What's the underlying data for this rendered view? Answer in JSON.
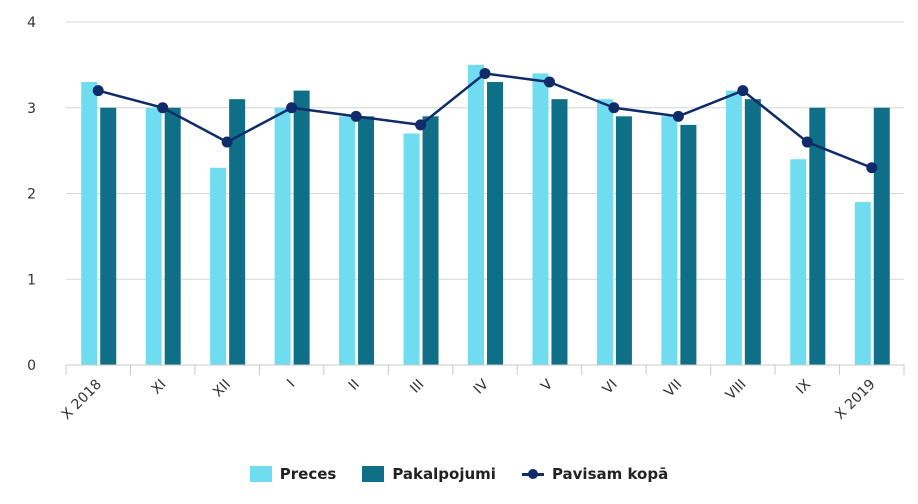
{
  "chart_data": {
    "type": "bar",
    "categories": [
      "X 2018",
      "XI",
      "XII",
      "I",
      "II",
      "III",
      "IV",
      "V",
      "VI",
      "VII",
      "VIII",
      "IX",
      "X 2019"
    ],
    "series": [
      {
        "name": "Preces",
        "type": "bar",
        "color": "#6fdcf0",
        "values": [
          3.3,
          3.0,
          2.3,
          3.0,
          2.9,
          2.7,
          3.5,
          3.4,
          3.1,
          2.9,
          3.2,
          2.4,
          1.9
        ]
      },
      {
        "name": "Pakalpojumi",
        "type": "bar",
        "color": "#0e6f86",
        "values": [
          3.0,
          3.0,
          3.1,
          3.2,
          2.9,
          2.9,
          3.3,
          3.1,
          2.9,
          2.8,
          3.1,
          3.0,
          3.0
        ]
      },
      {
        "name": "Pavisam kopā",
        "type": "line",
        "color": "#102b6a",
        "values": [
          3.2,
          3.0,
          2.6,
          3.0,
          2.9,
          2.8,
          3.4,
          3.3,
          3.0,
          2.9,
          3.2,
          2.6,
          2.3
        ]
      }
    ],
    "ylim": [
      0,
      4
    ],
    "yticks": [
      0,
      1,
      2,
      3,
      4
    ],
    "grid": true,
    "legend_position": "bottom-center",
    "title": "",
    "xlabel": "",
    "ylabel": ""
  }
}
